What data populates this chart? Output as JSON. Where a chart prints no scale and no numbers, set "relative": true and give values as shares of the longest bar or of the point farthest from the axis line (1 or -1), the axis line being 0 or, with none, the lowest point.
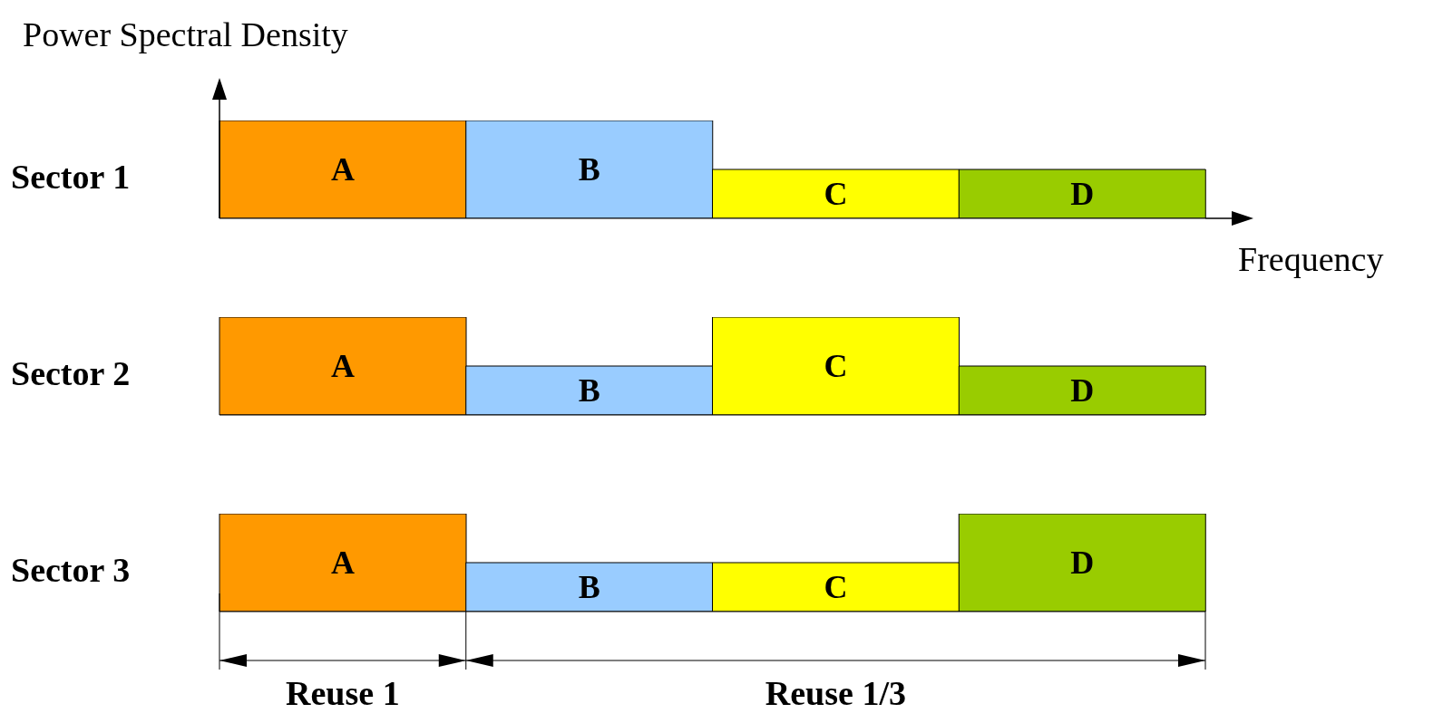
{
  "chart_data": [
    {
      "type": "bar",
      "title": "Sector 1",
      "ylabel": "Power Spectral Density",
      "xlabel": "Frequency",
      "relative": true,
      "categories": [
        "A",
        "B",
        "C",
        "D"
      ],
      "values": [
        1,
        1,
        0.5,
        0.5
      ],
      "colors": [
        "#ff9900",
        "#99ccff",
        "#ffff00",
        "#99cc00"
      ]
    },
    {
      "type": "bar",
      "title": "Sector 2",
      "relative": true,
      "categories": [
        "A",
        "B",
        "C",
        "D"
      ],
      "values": [
        1,
        0.5,
        1,
        0.5
      ],
      "colors": [
        "#ff9900",
        "#99ccff",
        "#ffff00",
        "#99cc00"
      ]
    },
    {
      "type": "bar",
      "title": "Sector 3",
      "relative": true,
      "categories": [
        "A",
        "B",
        "C",
        "D"
      ],
      "values": [
        1,
        0.5,
        0.5,
        1
      ],
      "colors": [
        "#ff9900",
        "#99ccff",
        "#ffff00",
        "#99cc00"
      ],
      "annotations": [
        "Reuse 1",
        "Reuse 1/3"
      ]
    }
  ]
}
